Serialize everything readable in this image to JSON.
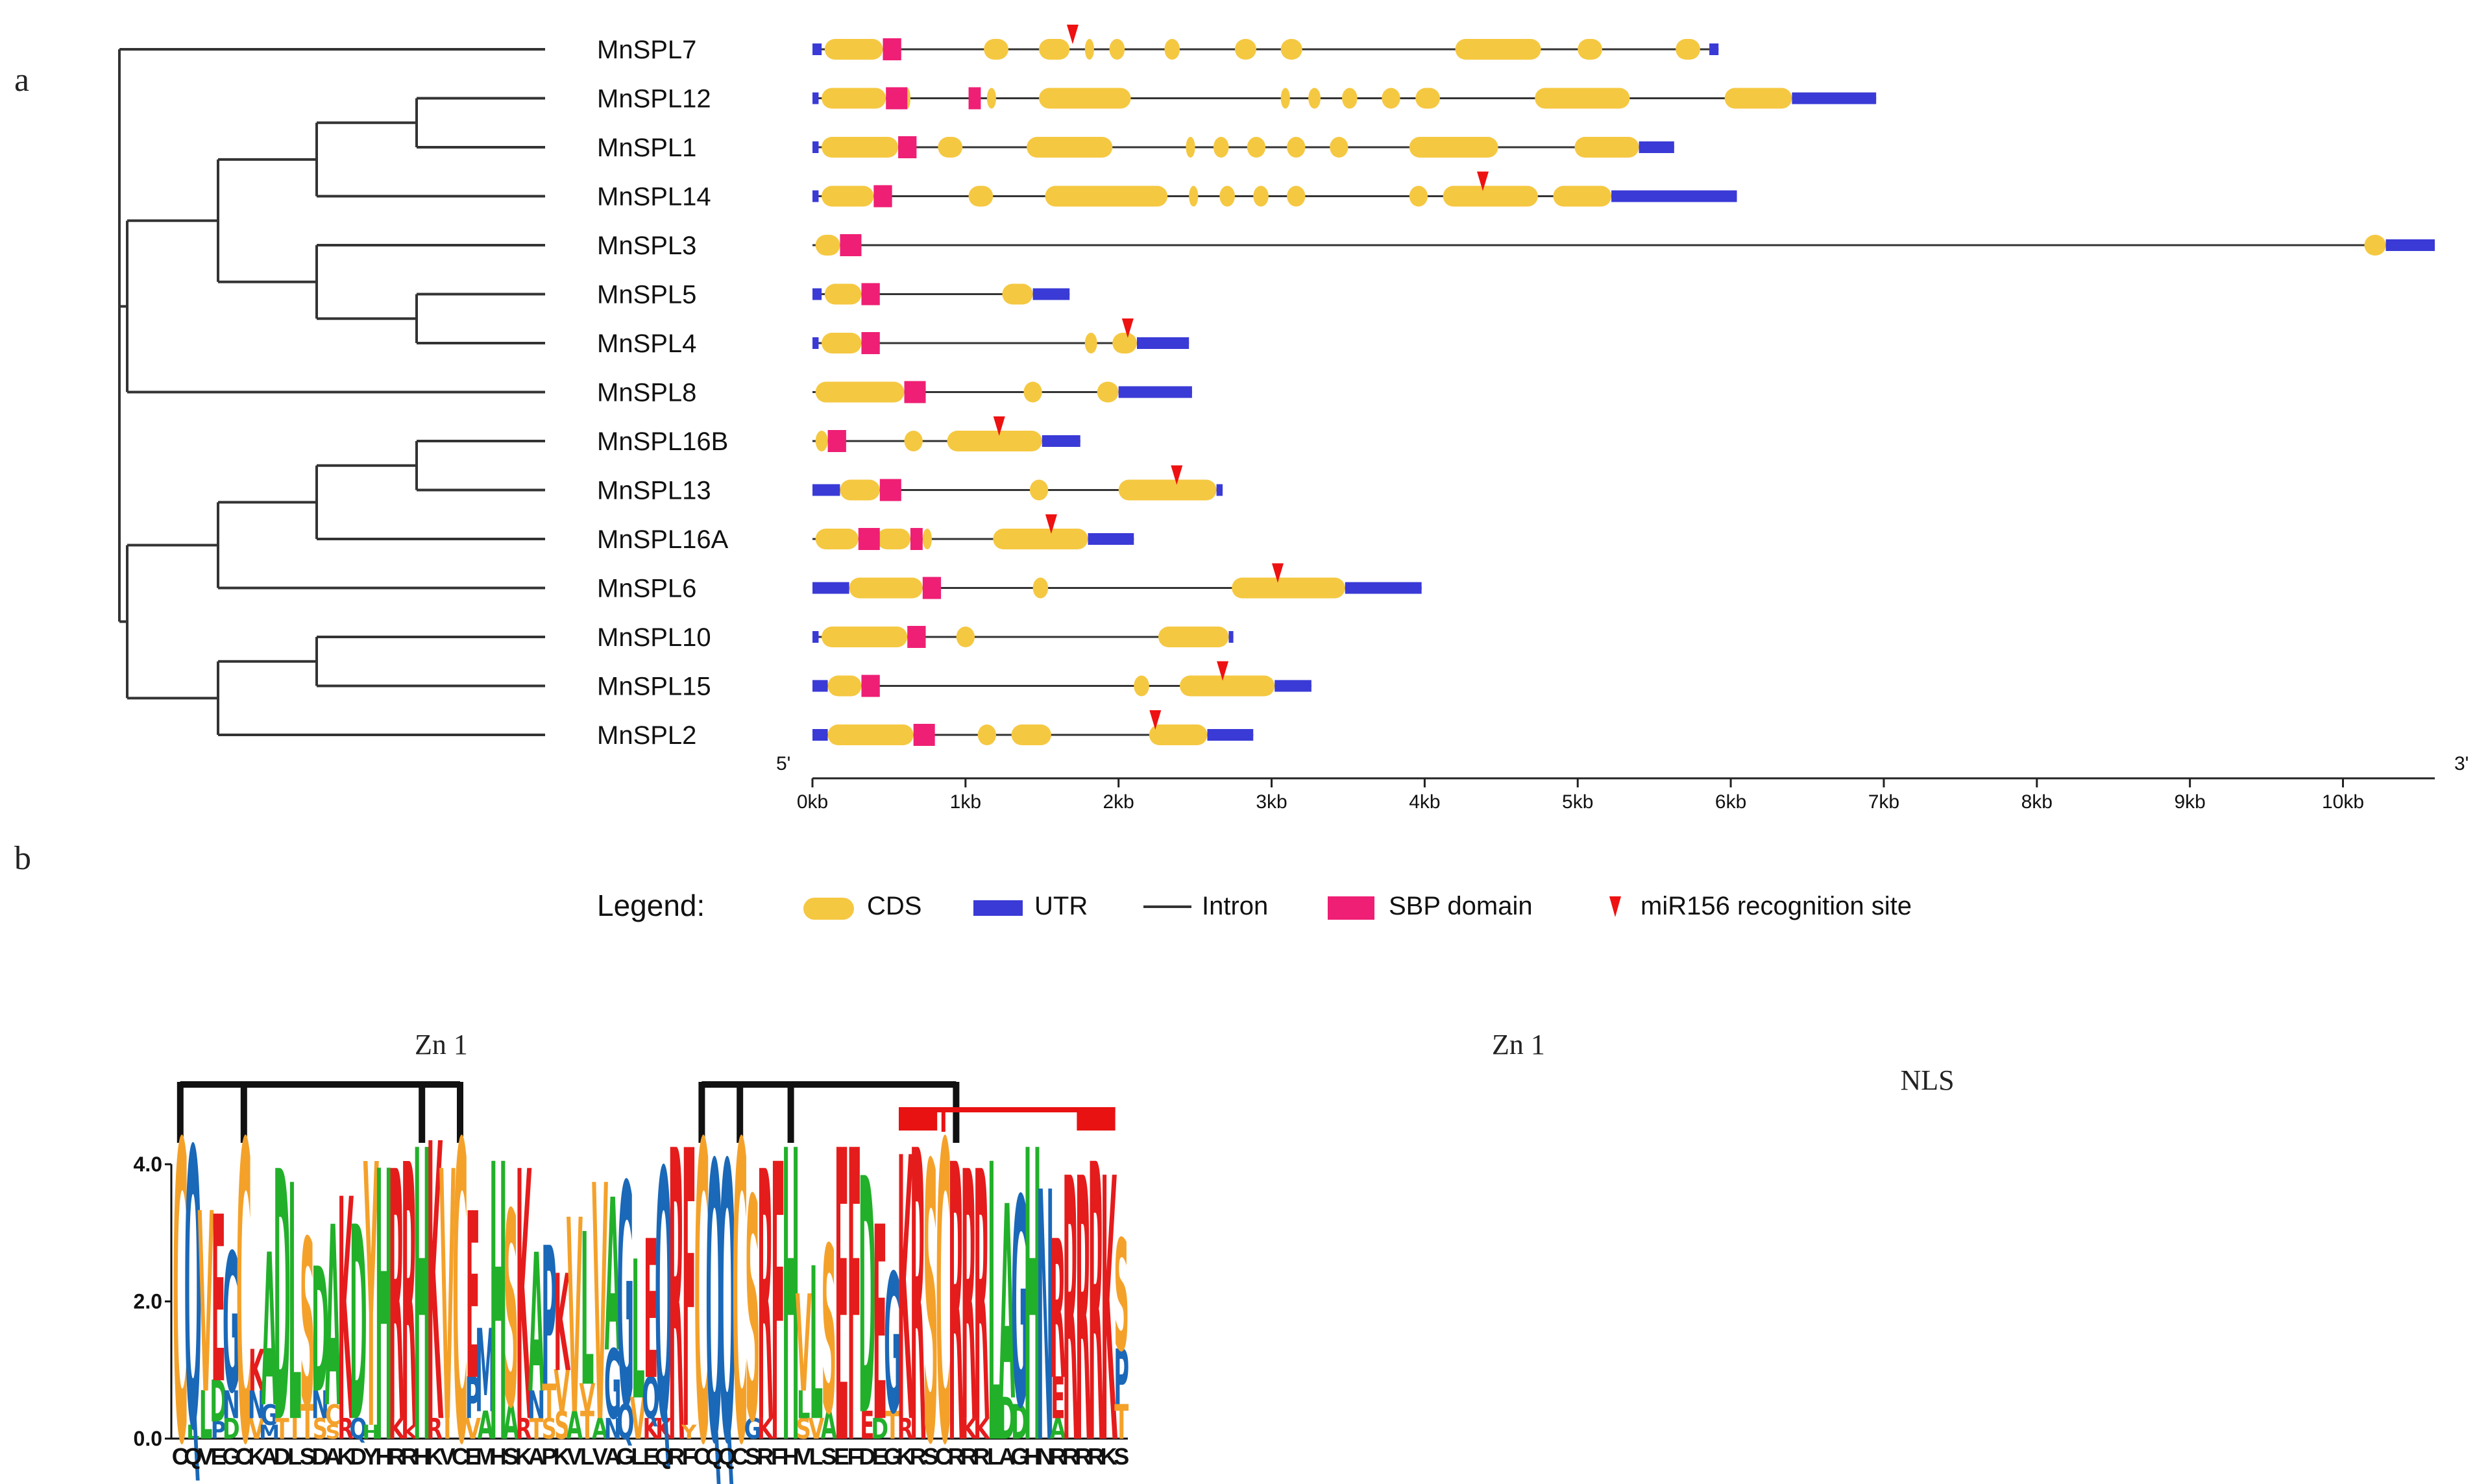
{
  "panels": {
    "a": "a",
    "b": "b"
  },
  "colors": {
    "cds": "#f5c842",
    "utr": "#3a3ad6",
    "intron": "#333333",
    "sbp": "#ee1f74",
    "mir156": "#ee1111",
    "zn_bracket": "#111111",
    "nls_bracket": "#e81212",
    "aa_green": "#22b02a",
    "aa_blue": "#1a68b8",
    "aa_red": "#e51c1c",
    "aa_orange": "#f4a12a",
    "aa_purple": "#8a2be2",
    "aa_black": "#111111"
  },
  "gene_structure": {
    "genes": [
      {
        "name": "MnSPL7",
        "length": 5.92,
        "cds": [
          [
            0.08,
            0.46
          ],
          [
            1.12,
            1.28
          ],
          [
            1.48,
            1.68
          ],
          [
            1.78,
            1.84
          ],
          [
            1.94,
            2.04
          ],
          [
            2.3,
            2.4
          ],
          [
            2.76,
            2.9
          ],
          [
            3.06,
            3.2
          ],
          [
            4.2,
            4.76
          ],
          [
            5.0,
            5.16
          ],
          [
            5.64,
            5.8
          ]
        ],
        "utr": [
          [
            0,
            0.06
          ],
          [
            5.86,
            5.92
          ]
        ],
        "sbp": [
          [
            0.46,
            0.58
          ]
        ],
        "mir": [
          1.7
        ]
      },
      {
        "name": "MnSPL12",
        "length": 6.95,
        "cds": [
          [
            0.06,
            0.48
          ],
          [
            0.6,
            0.64
          ],
          [
            1.14,
            1.2
          ],
          [
            1.48,
            2.08
          ],
          [
            3.06,
            3.12
          ],
          [
            3.24,
            3.32
          ],
          [
            3.46,
            3.56
          ],
          [
            3.72,
            3.84
          ],
          [
            3.94,
            4.1
          ],
          [
            4.72,
            5.34
          ],
          [
            5.96,
            6.4
          ]
        ],
        "utr": [
          [
            0,
            0.04
          ],
          [
            6.4,
            6.95
          ]
        ],
        "sbp": [
          [
            0.48,
            0.62
          ],
          [
            1.02,
            1.1
          ]
        ],
        "mir": []
      },
      {
        "name": "MnSPL1",
        "length": 5.63,
        "cds": [
          [
            0.06,
            0.56
          ],
          [
            0.82,
            0.98
          ],
          [
            1.4,
            1.96
          ],
          [
            2.44,
            2.5
          ],
          [
            2.62,
            2.72
          ],
          [
            2.84,
            2.96
          ],
          [
            3.1,
            3.22
          ],
          [
            3.38,
            3.5
          ],
          [
            3.9,
            4.48
          ],
          [
            4.98,
            5.4
          ]
        ],
        "utr": [
          [
            0,
            0.04
          ],
          [
            5.4,
            5.63
          ]
        ],
        "sbp": [
          [
            0.56,
            0.68
          ]
        ],
        "mir": []
      },
      {
        "name": "MnSPL14",
        "length": 6.04,
        "cds": [
          [
            0.06,
            0.4
          ],
          [
            1.02,
            1.18
          ],
          [
            1.52,
            2.32
          ],
          [
            2.46,
            2.52
          ],
          [
            2.66,
            2.76
          ],
          [
            2.88,
            2.98
          ],
          [
            3.1,
            3.22
          ],
          [
            3.9,
            4.02
          ],
          [
            4.12,
            4.74
          ],
          [
            4.84,
            5.22
          ]
        ],
        "utr": [
          [
            0,
            0.04
          ],
          [
            5.22,
            6.04
          ]
        ],
        "sbp": [
          [
            0.4,
            0.52
          ]
        ],
        "mir": [
          4.38
        ]
      },
      {
        "name": "MnSPL3",
        "length": 10.6,
        "cds": [
          [
            0.02,
            0.18
          ],
          [
            10.14,
            10.28
          ]
        ],
        "utr": [
          [
            10.28,
            10.6
          ]
        ],
        "sbp": [
          [
            0.18,
            0.32
          ]
        ],
        "mir": []
      },
      {
        "name": "MnSPL5",
        "length": 1.68,
        "cds": [
          [
            0.08,
            0.32
          ],
          [
            1.24,
            1.44
          ]
        ],
        "utr": [
          [
            0,
            0.06
          ],
          [
            1.44,
            1.68
          ]
        ],
        "sbp": [
          [
            0.32,
            0.44
          ]
        ],
        "mir": []
      },
      {
        "name": "MnSPL4",
        "length": 2.46,
        "cds": [
          [
            0.06,
            0.32
          ],
          [
            1.78,
            1.86
          ],
          [
            1.96,
            2.12
          ]
        ],
        "utr": [
          [
            0,
            0.04
          ],
          [
            2.12,
            2.46
          ]
        ],
        "sbp": [
          [
            0.32,
            0.44
          ]
        ],
        "mir": [
          2.06
        ]
      },
      {
        "name": "MnSPL8",
        "length": 2.48,
        "cds": [
          [
            0.02,
            0.6
          ],
          [
            1.38,
            1.5
          ],
          [
            1.86,
            2.0
          ]
        ],
        "utr": [
          [
            2.0,
            2.48
          ]
        ],
        "sbp": [
          [
            0.6,
            0.74
          ]
        ],
        "mir": []
      },
      {
        "name": "MnSPL16B",
        "length": 1.75,
        "cds": [
          [
            0.02,
            0.1
          ],
          [
            0.6,
            0.72
          ],
          [
            0.88,
            1.5
          ]
        ],
        "utr": [
          [
            1.5,
            1.75
          ]
        ],
        "sbp": [
          [
            0.1,
            0.22
          ]
        ],
        "mir": [
          1.22
        ]
      },
      {
        "name": "MnSPL13",
        "length": 2.68,
        "cds": [
          [
            0.18,
            0.44
          ],
          [
            1.42,
            1.54
          ],
          [
            2.0,
            2.64
          ]
        ],
        "utr": [
          [
            0,
            0.18
          ],
          [
            2.64,
            2.68
          ]
        ],
        "sbp": [
          [
            0.44,
            0.58
          ]
        ],
        "mir": [
          2.38
        ]
      },
      {
        "name": "MnSPL16A",
        "length": 2.1,
        "cds": [
          [
            0.02,
            0.3
          ],
          [
            0.42,
            0.64
          ],
          [
            0.72,
            0.78
          ],
          [
            1.18,
            1.8
          ]
        ],
        "utr": [
          [
            1.8,
            2.1
          ]
        ],
        "sbp": [
          [
            0.3,
            0.44
          ],
          [
            0.64,
            0.72
          ]
        ],
        "mir": [
          1.56
        ]
      },
      {
        "name": "MnSPL6",
        "length": 3.98,
        "cds": [
          [
            0.24,
            0.72
          ],
          [
            1.44,
            1.54
          ],
          [
            2.74,
            3.48
          ]
        ],
        "utr": [
          [
            0,
            0.24
          ],
          [
            3.48,
            3.98
          ]
        ],
        "sbp": [
          [
            0.72,
            0.84
          ]
        ],
        "mir": [
          3.04
        ]
      },
      {
        "name": "MnSPL10",
        "length": 2.75,
        "cds": [
          [
            0.06,
            0.62
          ],
          [
            0.94,
            1.06
          ],
          [
            2.26,
            2.72
          ]
        ],
        "utr": [
          [
            0,
            0.04
          ],
          [
            2.72,
            2.75
          ]
        ],
        "sbp": [
          [
            0.62,
            0.74
          ]
        ],
        "mir": []
      },
      {
        "name": "MnSPL15",
        "length": 3.26,
        "cds": [
          [
            0.1,
            0.32
          ],
          [
            2.1,
            2.2
          ],
          [
            2.4,
            3.02
          ]
        ],
        "utr": [
          [
            0,
            0.1
          ],
          [
            3.02,
            3.26
          ]
        ],
        "sbp": [
          [
            0.32,
            0.44
          ]
        ],
        "mir": [
          2.68
        ]
      },
      {
        "name": "MnSPL2",
        "length": 2.88,
        "cds": [
          [
            0.1,
            0.66
          ],
          [
            1.08,
            1.2
          ],
          [
            1.3,
            1.56
          ],
          [
            2.2,
            2.58
          ]
        ],
        "utr": [
          [
            0,
            0.1
          ],
          [
            2.58,
            2.88
          ]
        ],
        "sbp": [
          [
            0.66,
            0.8
          ]
        ],
        "mir": [
          2.24
        ]
      }
    ],
    "axis": {
      "five_prime": "5'",
      "three_prime": "3'",
      "ticks": [
        "0kb",
        "1kb",
        "2kb",
        "3kb",
        "4kb",
        "5kb",
        "6kb",
        "7kb",
        "8kb",
        "9kb",
        "10kb"
      ],
      "max_kb": 10.6
    }
  },
  "legend": {
    "title": "Legend:",
    "items": [
      {
        "key": "cds",
        "label": "CDS"
      },
      {
        "key": "utr",
        "label": "UTR"
      },
      {
        "key": "intron",
        "label": "Intron"
      },
      {
        "key": "sbp",
        "label": "SBP domain"
      },
      {
        "key": "mir156",
        "label": "miR156 recognition site"
      }
    ]
  },
  "logo": {
    "brackets": {
      "zn1_left": "Zn 1",
      "zn1_right": "Zn 1",
      "nls": "NLS"
    },
    "y_ticks": [
      "0.0",
      "2.0",
      "4.0"
    ],
    "y_max": 4.3,
    "consensus": "CQVEGCKADLSDAKDYHRRHKVCEMHSKAPKVLVAGLEQRFCQQCSRFHVLSEFDEGKRSCRRRLAGHNRRRRKS",
    "columns": [
      [
        [
          "C",
          4.3
        ]
      ],
      [
        [
          "Q",
          4.0
        ],
        [
          "L",
          0.2
        ]
      ],
      [
        [
          "V",
          2.6
        ],
        [
          "L",
          0.7
        ]
      ],
      [
        [
          "E",
          2.4
        ],
        [
          "D",
          0.6
        ],
        [
          "P",
          0.25
        ]
      ],
      [
        [
          "G",
          2.0
        ],
        [
          "N",
          0.4
        ],
        [
          "D",
          0.3
        ]
      ],
      [
        [
          "C",
          4.3
        ]
      ],
      [
        [
          "K",
          0.6
        ],
        [
          "N",
          0.4
        ],
        [
          "V",
          0.3
        ]
      ],
      [
        [
          "A",
          2.2
        ],
        [
          "G",
          0.3
        ],
        [
          "M",
          0.2
        ]
      ],
      [
        [
          "D",
          3.6
        ],
        [
          "T",
          0.3
        ]
      ],
      [
        [
          "L",
          3.4
        ],
        [
          "I",
          0.3
        ]
      ],
      [
        [
          "S",
          2.4
        ],
        [
          "T",
          0.5
        ]
      ],
      [
        [
          "D",
          1.8
        ],
        [
          "N",
          0.4
        ],
        [
          "S",
          0.3
        ]
      ],
      [
        [
          "A",
          2.6
        ],
        [
          "C",
          0.3
        ],
        [
          "S",
          0.2
        ]
      ],
      [
        [
          "K",
          3.2
        ],
        [
          "R",
          0.3
        ]
      ],
      [
        [
          "D",
          2.8
        ],
        [
          "Q",
          0.3
        ]
      ],
      [
        [
          "Y",
          3.8
        ],
        [
          "H",
          0.2
        ]
      ],
      [
        [
          "H",
          3.9
        ]
      ],
      [
        [
          "R",
          3.6
        ],
        [
          "K",
          0.3
        ]
      ],
      [
        [
          "R",
          3.8
        ],
        [
          "K",
          0.2
        ]
      ],
      [
        [
          "H",
          4.2
        ]
      ],
      [
        [
          "K",
          4.0
        ],
        [
          "R",
          0.3
        ]
      ],
      [
        [
          "V",
          3.6
        ],
        [
          "I",
          0.3
        ]
      ],
      [
        [
          "C",
          4.3
        ]
      ],
      [
        [
          "E",
          2.4
        ],
        [
          "P",
          0.6
        ],
        [
          "V",
          0.3
        ]
      ],
      [
        [
          "M",
          1.2
        ],
        [
          "A",
          0.4
        ]
      ],
      [
        [
          "H",
          4.0
        ]
      ],
      [
        [
          "S",
          2.8
        ],
        [
          "A",
          0.5
        ]
      ],
      [
        [
          "K",
          3.6
        ],
        [
          "R",
          0.3
        ]
      ],
      [
        [
          "A",
          2.0
        ],
        [
          "N",
          0.4
        ],
        [
          "T",
          0.3
        ]
      ],
      [
        [
          "P",
          2.0
        ],
        [
          "T",
          0.5
        ],
        [
          "S",
          0.3
        ]
      ],
      [
        [
          "K",
          1.4
        ],
        [
          "V",
          0.6
        ],
        [
          "S",
          0.4
        ]
      ],
      [
        [
          "V",
          2.8
        ],
        [
          "A",
          0.4
        ]
      ],
      [
        [
          "L",
          2.2
        ],
        [
          "T",
          0.4
        ],
        [
          "V",
          0.4
        ]
      ],
      [
        [
          "V",
          3.4
        ],
        [
          "A",
          0.3
        ]
      ],
      [
        [
          "A",
          2.2
        ],
        [
          "G",
          1.0
        ],
        [
          "N",
          0.3
        ]
      ],
      [
        [
          "G",
          3.2
        ],
        [
          "Q",
          0.5
        ]
      ],
      [
        [
          "L",
          2.0
        ],
        [
          "V",
          0.6
        ]
      ],
      [
        [
          "E",
          2.0
        ],
        [
          "Q",
          0.6
        ],
        [
          "K",
          0.3
        ]
      ],
      [
        [
          "Q",
          3.6
        ],
        [
          "K",
          0.3
        ]
      ],
      [
        [
          "R",
          4.2
        ]
      ],
      [
        [
          "F",
          4.0
        ],
        [
          "Y",
          0.2
        ]
      ],
      [
        [
          "C",
          4.3
        ]
      ],
      [
        [
          "Q",
          4.0
        ]
      ],
      [
        [
          "Q",
          4.0
        ]
      ],
      [
        [
          "C",
          4.3
        ]
      ],
      [
        [
          "S",
          3.2
        ],
        [
          "G",
          0.3
        ]
      ],
      [
        [
          "R",
          3.6
        ],
        [
          "K",
          0.3
        ]
      ],
      [
        [
          "F",
          4.0
        ]
      ],
      [
        [
          "H",
          4.2
        ]
      ],
      [
        [
          "V",
          1.4
        ],
        [
          "L",
          0.4
        ],
        [
          "S",
          0.3
        ]
      ],
      [
        [
          "L",
          2.2
        ],
        [
          "V",
          0.3
        ]
      ],
      [
        [
          "S",
          2.4
        ],
        [
          "A",
          0.4
        ]
      ],
      [
        [
          "E",
          4.2
        ]
      ],
      [
        [
          "F",
          4.2
        ]
      ],
      [
        [
          "D",
          3.4
        ],
        [
          "E",
          0.4
        ]
      ],
      [
        [
          "E",
          2.8
        ],
        [
          "D",
          0.3
        ]
      ],
      [
        [
          "G",
          2.0
        ],
        [
          "T",
          0.4
        ]
      ],
      [
        [
          "K",
          3.8
        ],
        [
          "R",
          0.3
        ]
      ],
      [
        [
          "R",
          4.2
        ]
      ],
      [
        [
          "S",
          4.0
        ]
      ],
      [
        [
          "C",
          4.3
        ]
      ],
      [
        [
          "R",
          4.0
        ]
      ],
      [
        [
          "R",
          3.6
        ],
        [
          "K",
          0.3
        ]
      ],
      [
        [
          "R",
          3.6
        ],
        [
          "K",
          0.3
        ]
      ],
      [
        [
          "L",
          4.0
        ]
      ],
      [
        [
          "A",
          2.8
        ],
        [
          "D",
          0.6
        ]
      ],
      [
        [
          "G",
          3.0
        ],
        [
          "D",
          0.5
        ]
      ],
      [
        [
          "H",
          4.2
        ]
      ],
      [
        [
          "N",
          3.6
        ]
      ],
      [
        [
          "R",
          2.0
        ],
        [
          "E",
          0.6
        ],
        [
          "A",
          0.3
        ]
      ],
      [
        [
          "R",
          3.8
        ]
      ],
      [
        [
          "R",
          3.8
        ]
      ],
      [
        [
          "R",
          4.0
        ]
      ],
      [
        [
          "K",
          3.8
        ]
      ],
      [
        [
          "S",
          1.6
        ],
        [
          "P",
          0.8
        ],
        [
          "T",
          0.5
        ]
      ]
    ]
  }
}
